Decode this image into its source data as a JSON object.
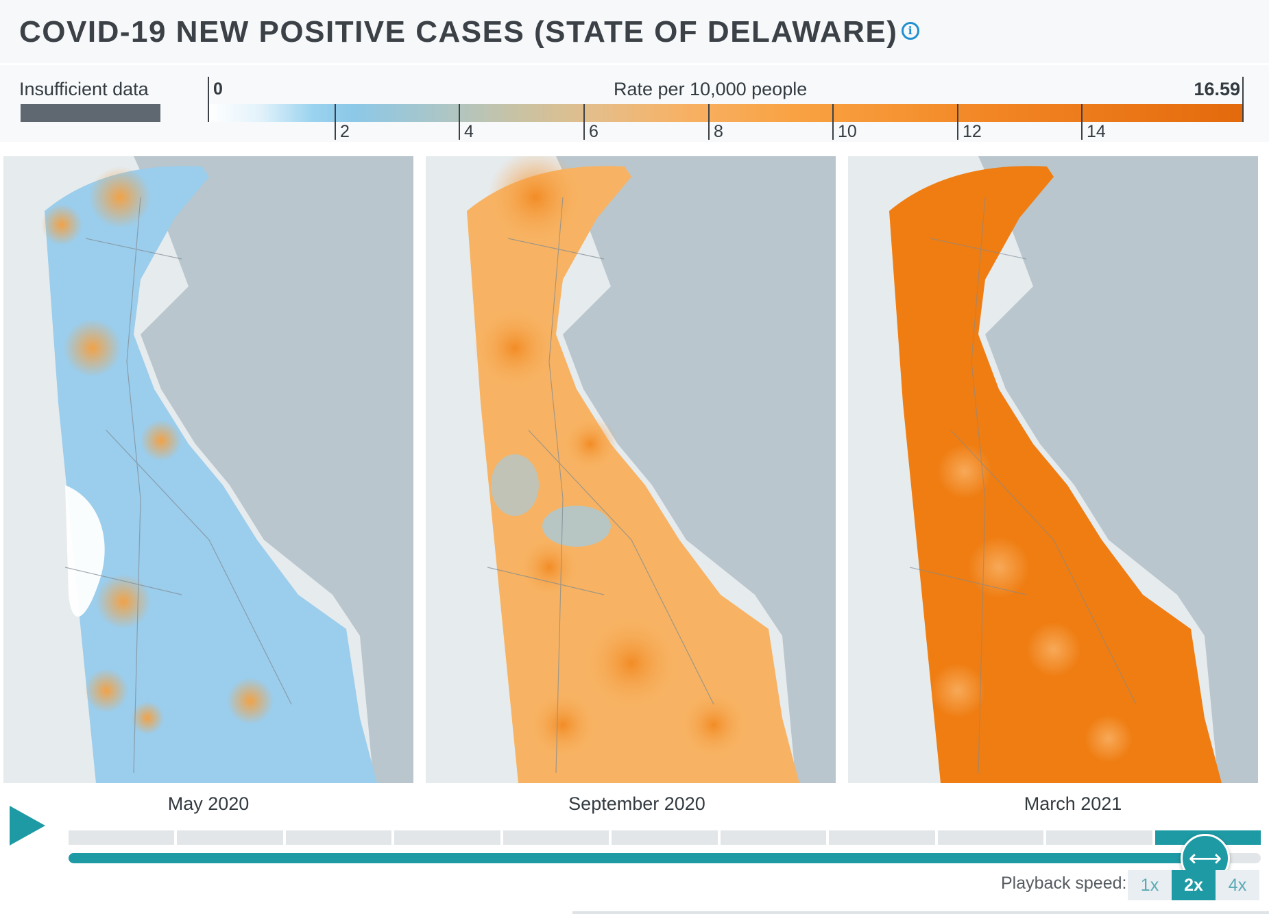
{
  "header": {
    "title": "COVID-19 NEW POSITIVE CASES (STATE OF DELAWARE)",
    "info_icon": "info-icon"
  },
  "legend": {
    "insufficient_label": "Insufficient data",
    "insufficient_color": "#5f6770",
    "scale_title": "Rate per 10,000 people",
    "min_label": "0",
    "max_label": "16.59",
    "ticks": [
      "2",
      "4",
      "6",
      "8",
      "10",
      "12",
      "14"
    ],
    "color_low": "#ffffff",
    "color_mid": "#8cc8e7",
    "color_high": "#e46a0c"
  },
  "maps": [
    {
      "label": "May 2020",
      "level": "low"
    },
    {
      "label": "September 2020",
      "level": "medium"
    },
    {
      "label": "March 2021",
      "level": "high"
    }
  ],
  "timeline": {
    "segments": 11,
    "active_segment": 11,
    "progress": 0.96,
    "handle_icon": "drag-arrows-icon",
    "play_icon": "play-icon"
  },
  "playback": {
    "label": "Playback speed:",
    "options": [
      "1x",
      "2x",
      "4x"
    ],
    "selected": "2x"
  },
  "colors": {
    "accent": "#1e9aa5",
    "water": "#b9c6cd",
    "land": "#e6ebee"
  }
}
